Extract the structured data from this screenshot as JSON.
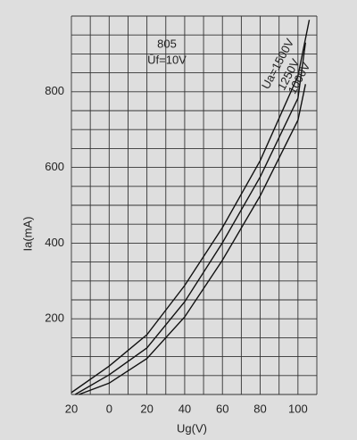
{
  "chart_data": {
    "type": "line",
    "annotations": [
      "805",
      "Ūf=10V"
    ],
    "x_label": "Ug(V)",
    "y_label": "Ia(mA)",
    "xlim": [
      -20,
      110
    ],
    "ylim": [
      0,
      1000
    ],
    "xticks": [
      {
        "value": -20,
        "label": "20"
      },
      0,
      20,
      40,
      60,
      80,
      100
    ],
    "yticks": [
      200,
      400,
      600,
      800
    ],
    "grid": {
      "x": 10,
      "y": 50
    },
    "series": [
      {
        "name": "Ua=1500V",
        "color": "#111111",
        "x": [
          -20,
          0,
          20,
          40,
          60,
          80,
          100,
          106
        ],
        "values": [
          5,
          75,
          158,
          288,
          441,
          618,
          842,
          990
        ]
      },
      {
        "name": "1250V",
        "color": "#111111",
        "x": [
          -18,
          0,
          20,
          40,
          60,
          80,
          100,
          104
        ],
        "values": [
          0,
          52,
          123,
          245,
          401,
          575,
          783,
          930
        ]
      },
      {
        "name": "1000V",
        "color": "#111111",
        "x": [
          -16,
          0,
          20,
          40,
          60,
          80,
          100,
          104
        ],
        "values": [
          0,
          30,
          95,
          205,
          355,
          525,
          725,
          820
        ]
      }
    ]
  }
}
